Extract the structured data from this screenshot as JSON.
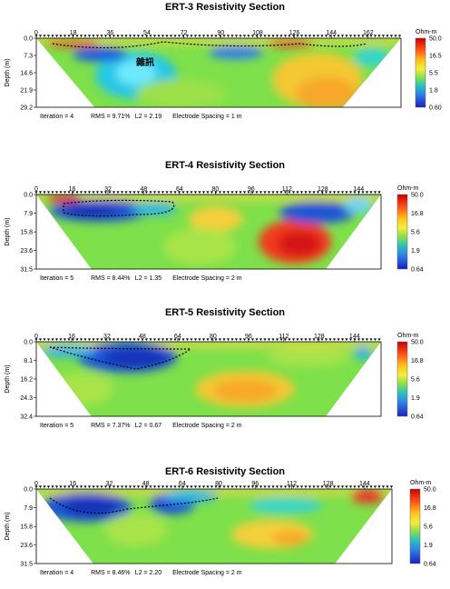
{
  "chart_data": [
    {
      "type": "heatmap",
      "title": "ERT-3 Resistivity Section",
      "x_ticks": [
        "0",
        "18",
        "36",
        "54",
        "72",
        "90",
        "108",
        "126",
        "144",
        "162"
      ],
      "x_range": [
        0,
        178
      ],
      "ylabel": "Depth (m)",
      "y_ticks": [
        "0.0",
        "7.3",
        "14.6",
        "21.9",
        "29.2"
      ],
      "y_range": [
        0,
        29.2
      ],
      "colorbar_unit": "Ohm-m",
      "colorbar_ticks": [
        "50.0",
        "16.5",
        "5.5",
        "1.8",
        "0.60"
      ],
      "annotation": "雜訊",
      "stats": {
        "iteration": "Iteration = 4",
        "rms": "RMS = 9.71%",
        "l2": "L2 = 2.19",
        "spacing": "Electrode Spacing = 1 m"
      }
    },
    {
      "type": "heatmap",
      "title": "ERT-4 Resistivity Section",
      "x_ticks": [
        "0",
        "16",
        "32",
        "48",
        "64",
        "80",
        "96",
        "112",
        "128",
        "144"
      ],
      "x_range": [
        0,
        154
      ],
      "ylabel": "Depth (m)",
      "y_ticks": [
        "0.0",
        "7.9",
        "15.8",
        "23.6",
        "31.5"
      ],
      "y_range": [
        0,
        31.5
      ],
      "colorbar_unit": "Ohm-m",
      "colorbar_ticks": [
        "50.0",
        "16.8",
        "5.6",
        "1.9",
        "0.64"
      ],
      "stats": {
        "iteration": "Iteration = 5",
        "rms": "RMS = 8.44%",
        "l2": "L2 = 1.35",
        "spacing": "Electrode Spacing = 2 m"
      }
    },
    {
      "type": "heatmap",
      "title": "ERT-5 Resistivity Section",
      "x_ticks": [
        "0",
        "16",
        "32",
        "48",
        "64",
        "80",
        "96",
        "112",
        "128",
        "144"
      ],
      "x_range": [
        0,
        156
      ],
      "ylabel": "Depth (m)",
      "y_ticks": [
        "0.0",
        "8.1",
        "16.2",
        "24.3",
        "32.4"
      ],
      "y_range": [
        0,
        32.4
      ],
      "colorbar_unit": "Ohm-m",
      "colorbar_ticks": [
        "50.0",
        "16.8",
        "5.6",
        "1.9",
        "0.64"
      ],
      "stats": {
        "iteration": "Iteration = 5",
        "rms": "RMS = 7.37%",
        "l2": "L2 = 0.67",
        "spacing": "Electrode Spacing = 2 m"
      }
    },
    {
      "type": "heatmap",
      "title": "ERT-6 Resistivity Section",
      "x_ticks": [
        "0",
        "16",
        "32",
        "48",
        "64",
        "80",
        "96",
        "112",
        "128",
        "144"
      ],
      "x_range": [
        0,
        156
      ],
      "ylabel": "Depth (m)",
      "y_ticks": [
        "0.0",
        "7.9",
        "15.8",
        "23.6",
        "31.5"
      ],
      "y_range": [
        0,
        31.5
      ],
      "colorbar_unit": "Ohm-m",
      "colorbar_ticks": [
        "50.0",
        "16.8",
        "5.6",
        "1.9",
        "0.64"
      ],
      "stats": {
        "iteration": "Iteration = 4",
        "rms": "RMS = 8.46%",
        "l2": "L2 = 2.20",
        "spacing": "Electrode Spacing = 2 m"
      }
    }
  ]
}
